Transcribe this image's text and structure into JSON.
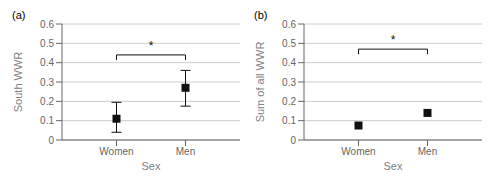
{
  "chart_data": [
    {
      "type": "scatter",
      "title": "(a)",
      "xlabel": "Sex",
      "ylabel": "South WWR",
      "categories": [
        "Women",
        "Men"
      ],
      "values": [
        0.11,
        0.27
      ],
      "errors_upper": [
        0.085,
        0.09
      ],
      "errors_lower": [
        0.07,
        0.095
      ],
      "color": "#111111",
      "marker": "square",
      "ylim": [
        0,
        0.6
      ],
      "yticks": [
        0,
        0.1,
        0.2,
        0.3,
        0.4,
        0.5,
        0.6
      ],
      "grid": true,
      "annotations": [
        {
          "text": "*",
          "y": 0.44,
          "x": [
            "Women",
            "Men"
          ]
        }
      ]
    },
    {
      "type": "scatter",
      "title": "(b)",
      "xlabel": "Sex",
      "ylabel": "Sum of all WWR",
      "categories": [
        "Women",
        "Men"
      ],
      "values": [
        0.075,
        0.14
      ],
      "color": "#111111",
      "marker": "square",
      "ylim": [
        0,
        0.6
      ],
      "yticks": [
        0,
        0.1,
        0.2,
        0.3,
        0.4,
        0.5,
        0.6
      ],
      "grid": true,
      "annotations": [
        {
          "text": "*",
          "y": 0.47,
          "x": [
            "Women",
            "Men"
          ]
        }
      ]
    }
  ]
}
